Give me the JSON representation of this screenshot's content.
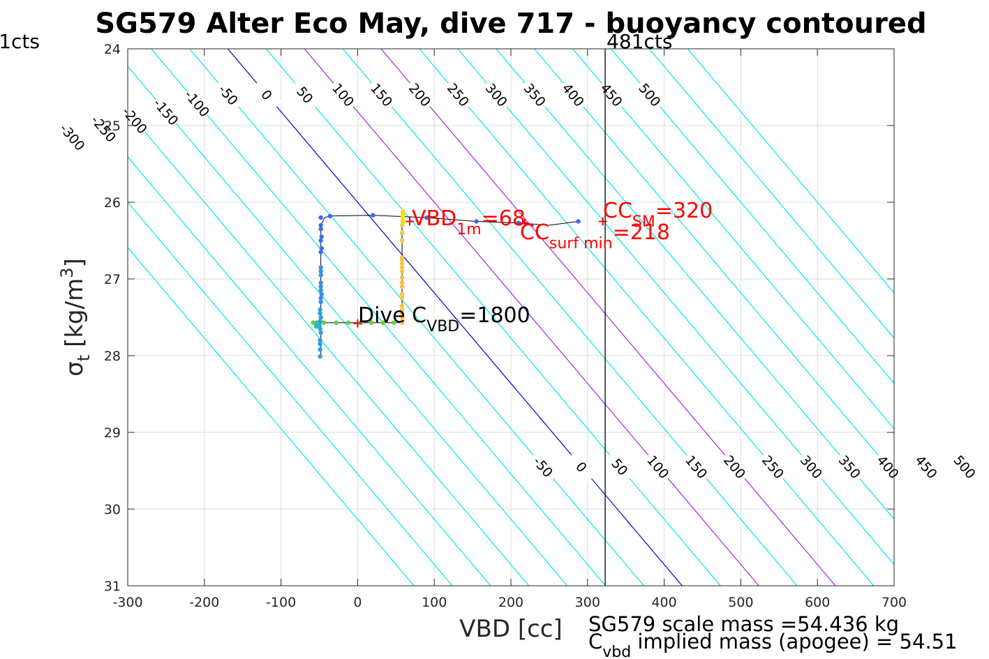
{
  "chart_data": {
    "type": "scatter",
    "title": "SG579 Alter Eco May, dive 717 - buoyancy contoured",
    "xlabel": "VBD [cc]",
    "ylabel": {
      "main": "σ",
      "sub": "t",
      "unit_pre": " [kg/m",
      "unit_sup": "3",
      "unit_post": "]"
    },
    "xlim": [
      -300,
      700
    ],
    "ylim": [
      24,
      31
    ],
    "y_reversed": true,
    "grid": true,
    "x_ticks": [
      -300,
      -200,
      -100,
      0,
      100,
      200,
      300,
      400,
      500,
      600,
      700
    ],
    "y_ticks": [
      24,
      25,
      26,
      27,
      28,
      29,
      30,
      31
    ],
    "x_tick_labels": [
      "-300",
      "-200",
      "-100",
      "0",
      "100",
      "200",
      "300",
      "400",
      "500",
      "600",
      "700"
    ],
    "y_tick_labels": [
      "24",
      "25",
      "26",
      "27",
      "28",
      "29",
      "30",
      "31"
    ],
    "contour_levels": [
      -350,
      -300,
      -250,
      -200,
      -150,
      -100,
      -50,
      0,
      50,
      100,
      150,
      200,
      250,
      300,
      350,
      400,
      450,
      500,
      550,
      600
    ],
    "upper_contour_labels": [
      "-300",
      "-250",
      "-200",
      "-150",
      "-100",
      "-50",
      "0",
      "50",
      "100",
      "150",
      "200",
      "250",
      "300",
      "350",
      "400",
      "450",
      "500"
    ],
    "lower_contour_labels": [
      "-50",
      "0",
      "50",
      "100",
      "150",
      "200",
      "250",
      "300",
      "350",
      "400",
      "450",
      "500"
    ],
    "contour_colors": {
      "default": "#00e5ee",
      "zero": "#0000cd",
      "highlight": "#aa22dd"
    },
    "highlight_levels": [
      100,
      200
    ],
    "reference_lines": [
      {
        "x": 323,
        "label": "481cts",
        "color": "#000000"
      },
      {
        "x": -300,
        "label": "1cts",
        "color": "#000000"
      }
    ],
    "series": [
      {
        "color": "#4466ee",
        "points": [
          [
            -48,
            26.2
          ],
          [
            -36,
            26.18
          ],
          [
            20,
            26.17
          ],
          [
            90,
            26.2
          ],
          [
            155,
            26.25
          ],
          [
            210,
            26.27
          ],
          [
            288,
            26.25
          ]
        ]
      },
      {
        "color": "#3b6fe8",
        "points": [
          [
            -48,
            26.3
          ],
          [
            -48,
            26.35
          ],
          [
            -47,
            26.45
          ],
          [
            -48,
            26.5
          ],
          [
            -47,
            26.6
          ],
          [
            -48,
            26.65
          ]
        ]
      },
      {
        "color": "#3a8bea",
        "points": [
          [
            -48,
            26.85
          ],
          [
            -48,
            26.9
          ],
          [
            -48,
            26.95
          ],
          [
            -48,
            27.05
          ],
          [
            -48,
            27.1
          ],
          [
            -48,
            27.15
          ],
          [
            -47,
            27.2
          ],
          [
            -48,
            27.25
          ],
          [
            -48,
            27.3
          ]
        ]
      },
      {
        "color": "#2aa0e0",
        "points": [
          [
            -49,
            27.4
          ],
          [
            -49,
            27.45
          ],
          [
            -48,
            27.5
          ],
          [
            -49,
            27.55
          ],
          [
            -50,
            27.6
          ],
          [
            -49,
            27.65
          ],
          [
            -48,
            27.7
          ],
          [
            -49,
            27.8
          ],
          [
            -49,
            27.85
          ],
          [
            -49,
            27.92
          ],
          [
            -49,
            28.01
          ]
        ]
      },
      {
        "color": "#2bbdb0",
        "points": [
          [
            -55,
            27.58
          ],
          [
            -53,
            27.57
          ],
          [
            -51,
            27.6
          ],
          [
            -54,
            27.62
          ]
        ]
      },
      {
        "color": "#66cc44",
        "points": [
          [
            -58,
            27.57
          ],
          [
            -44,
            27.57
          ],
          [
            -28,
            27.57
          ],
          [
            -12,
            27.57
          ],
          [
            4,
            27.57
          ],
          [
            18,
            27.57
          ],
          [
            33,
            27.57
          ],
          [
            47,
            27.57
          ]
        ]
      },
      {
        "color": "#f5c542",
        "points": [
          [
            58,
            27.57
          ],
          [
            58,
            27.55
          ],
          [
            58,
            27.5
          ],
          [
            58,
            27.45
          ],
          [
            58,
            27.4
          ],
          [
            58,
            27.35
          ],
          [
            58,
            27.25
          ],
          [
            58,
            27.2
          ],
          [
            58,
            27.1
          ],
          [
            58,
            27.05
          ],
          [
            58,
            26.98
          ],
          [
            58,
            26.9
          ],
          [
            58,
            26.85
          ],
          [
            58,
            26.8
          ],
          [
            58,
            26.75
          ],
          [
            58,
            26.72
          ],
          [
            58,
            26.5
          ],
          [
            58,
            26.4
          ],
          [
            58,
            26.3
          ]
        ]
      },
      {
        "color": "#f7e01f",
        "points": [
          [
            59,
            26.27
          ],
          [
            59,
            26.24
          ],
          [
            59,
            26.21
          ],
          [
            59,
            26.18
          ],
          [
            59,
            26.15
          ],
          [
            59,
            26.12
          ]
        ]
      }
    ],
    "trace_path": [
      [
        -48,
        28.0
      ],
      [
        -48,
        26.3
      ],
      [
        -43,
        26.2
      ],
      [
        -36,
        26.18
      ],
      [
        20,
        26.17
      ],
      [
        90,
        26.2
      ],
      [
        155,
        26.25
      ],
      [
        210,
        26.27
      ],
      [
        250,
        26.3
      ],
      [
        288,
        26.25
      ]
    ],
    "trace_path2": [
      [
        -48,
        27.57
      ],
      [
        58,
        27.57
      ],
      [
        58,
        26.13
      ]
    ],
    "markers": [
      {
        "x": 0,
        "y": 27.58,
        "color": "#ff0000"
      },
      {
        "x": 68,
        "y": 26.25,
        "color": "#ff0000"
      },
      {
        "x": 218,
        "y": 26.27,
        "color": "#ff0000"
      },
      {
        "x": 320,
        "y": 26.25,
        "color": "#ff0000"
      }
    ],
    "annotations": {
      "dive": {
        "pre": "Dive C",
        "sub": "VBD",
        "post": "=1800"
      },
      "vbd1m": {
        "pre": "VBD",
        "sub": "1m",
        "post": "=68"
      },
      "ccsurf": {
        "pre": "CC",
        "sub": "surf min",
        "post": "=218"
      },
      "ccsm": {
        "pre": "CC",
        "sub": "SM",
        "post": "=320"
      }
    }
  },
  "footer": {
    "line1": "SG579 scale mass =54.436 kg",
    "line2_pre": "C",
    "line2_sub": "vbd",
    "line2_post": " implied mass (apogee) = 54.51"
  }
}
